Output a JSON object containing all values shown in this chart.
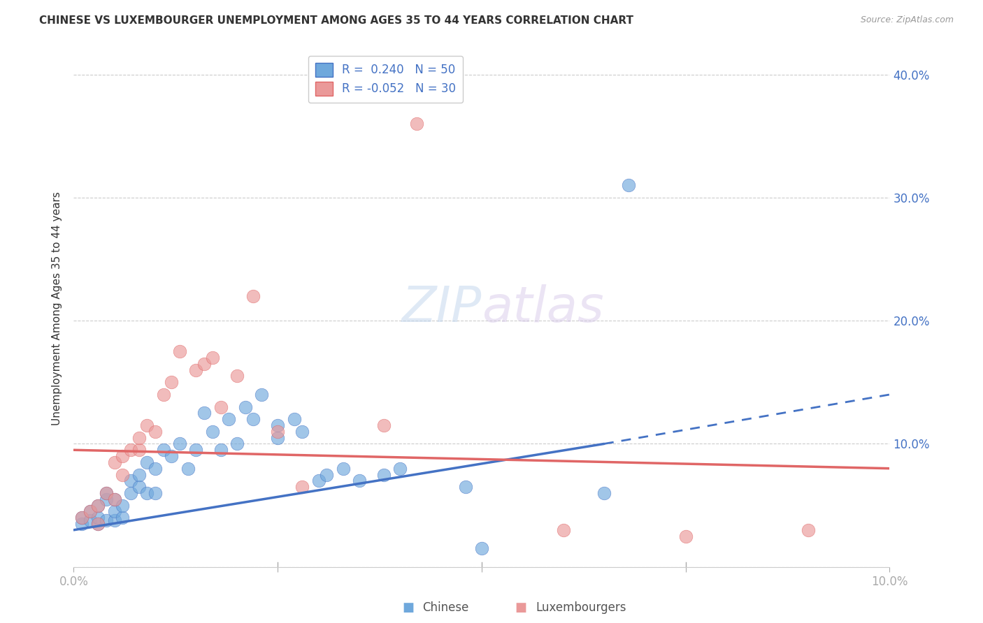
{
  "title": "CHINESE VS LUXEMBOURGER UNEMPLOYMENT AMONG AGES 35 TO 44 YEARS CORRELATION CHART",
  "source": "Source: ZipAtlas.com",
  "ylabel": "Unemployment Among Ages 35 to 44 years",
  "xlim": [
    0.0,
    0.1
  ],
  "ylim": [
    0.0,
    0.42
  ],
  "ytick_vals": [
    0.0,
    0.1,
    0.2,
    0.3,
    0.4
  ],
  "right_ytick_labels": [
    "40.0%",
    "30.0%",
    "20.0%",
    "10.0%"
  ],
  "right_ytick_vals": [
    0.4,
    0.3,
    0.2,
    0.1
  ],
  "legend_r_chinese": "0.240",
  "legend_n_chinese": "50",
  "legend_r_lux": "-0.052",
  "legend_n_lux": "30",
  "chinese_color": "#6fa8dc",
  "lux_color": "#ea9999",
  "trendline_chinese_color": "#4472c4",
  "trendline_lux_color": "#e06666",
  "chinese_x": [
    0.001,
    0.001,
    0.002,
    0.002,
    0.003,
    0.003,
    0.003,
    0.004,
    0.004,
    0.004,
    0.005,
    0.005,
    0.005,
    0.006,
    0.006,
    0.007,
    0.007,
    0.008,
    0.008,
    0.009,
    0.009,
    0.01,
    0.01,
    0.011,
    0.012,
    0.013,
    0.014,
    0.015,
    0.016,
    0.017,
    0.018,
    0.019,
    0.02,
    0.021,
    0.022,
    0.023,
    0.025,
    0.025,
    0.027,
    0.028,
    0.03,
    0.031,
    0.033,
    0.035,
    0.038,
    0.04,
    0.048,
    0.05,
    0.065,
    0.068
  ],
  "chinese_y": [
    0.035,
    0.04,
    0.038,
    0.045,
    0.035,
    0.04,
    0.05,
    0.038,
    0.055,
    0.06,
    0.038,
    0.045,
    0.055,
    0.04,
    0.05,
    0.06,
    0.07,
    0.065,
    0.075,
    0.06,
    0.085,
    0.06,
    0.08,
    0.095,
    0.09,
    0.1,
    0.08,
    0.095,
    0.125,
    0.11,
    0.095,
    0.12,
    0.1,
    0.13,
    0.12,
    0.14,
    0.105,
    0.115,
    0.12,
    0.11,
    0.07,
    0.075,
    0.08,
    0.07,
    0.075,
    0.08,
    0.065,
    0.015,
    0.06,
    0.31
  ],
  "lux_x": [
    0.001,
    0.002,
    0.003,
    0.003,
    0.004,
    0.005,
    0.005,
    0.006,
    0.006,
    0.007,
    0.008,
    0.008,
    0.009,
    0.01,
    0.011,
    0.012,
    0.013,
    0.015,
    0.016,
    0.017,
    0.018,
    0.02,
    0.022,
    0.025,
    0.028,
    0.038,
    0.042,
    0.06,
    0.075,
    0.09
  ],
  "lux_y": [
    0.04,
    0.045,
    0.035,
    0.05,
    0.06,
    0.055,
    0.085,
    0.075,
    0.09,
    0.095,
    0.095,
    0.105,
    0.115,
    0.11,
    0.14,
    0.15,
    0.175,
    0.16,
    0.165,
    0.17,
    0.13,
    0.155,
    0.22,
    0.11,
    0.065,
    0.115,
    0.36,
    0.03,
    0.025,
    0.03
  ],
  "trend_chinese_x0": 0.0,
  "trend_chinese_y0": 0.03,
  "trend_chinese_x1": 0.065,
  "trend_chinese_y1": 0.1,
  "trend_chinese_dash_x0": 0.065,
  "trend_chinese_dash_y0": 0.1,
  "trend_chinese_dash_x1": 0.1,
  "trend_chinese_dash_y1": 0.14,
  "trend_lux_x0": 0.0,
  "trend_lux_y0": 0.095,
  "trend_lux_x1": 0.1,
  "trend_lux_y1": 0.08
}
